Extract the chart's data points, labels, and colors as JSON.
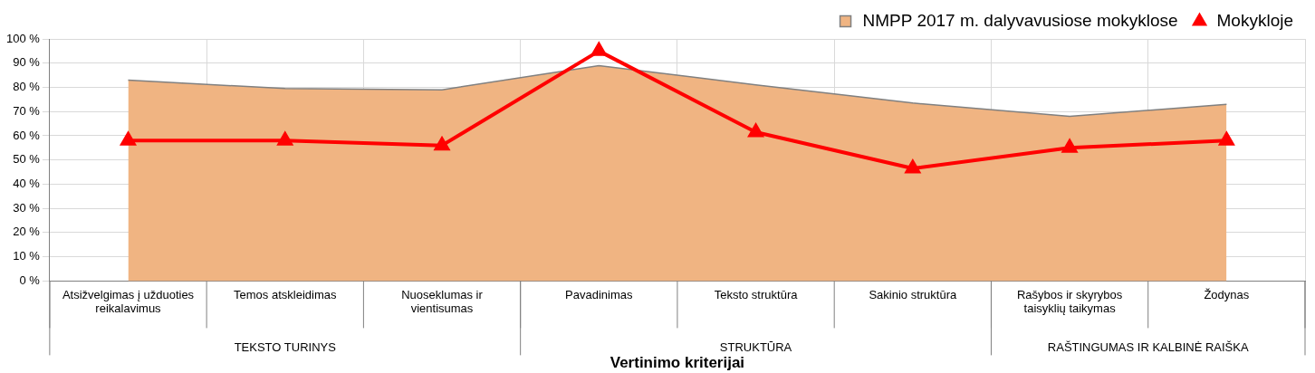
{
  "chart_data": {
    "type": "area",
    "categories": [
      "Atsižvelgimas į užduoties reikalavimus",
      "Temos atskleidimas",
      "Nuoseklumas ir vientisumas",
      "Pavadinimas",
      "Teksto struktūra",
      "Sakinio struktūra",
      "Rašybos ir skyrybos taisyklių taikymas",
      "Žodynas"
    ],
    "series": [
      {
        "name": "NMPP 2017 m. dalyvavusiose mokyklose",
        "color": "#f0b482",
        "marker": "none",
        "values": [
          83,
          79.5,
          79,
          89,
          81,
          73.5,
          68,
          73
        ]
      },
      {
        "name": "Mokykloje",
        "type": "line",
        "color": "#ff0000",
        "marker": "triangle",
        "values": [
          58,
          58,
          56,
          95,
          61.5,
          46.5,
          55,
          58
        ]
      }
    ],
    "xlabel": "Vertinimo kriterijai",
    "annotations": [
      "TEKSTO TURINYS",
      "STRUKTŪRA",
      "RAŠTINGUMAS IR KALBINĖ RAIŠKA"
    ],
    "ylim": [
      0,
      100
    ],
    "yticks": [
      {
        "value": 0,
        "label": "0 %"
      },
      {
        "value": 10,
        "label": "10 %"
      },
      {
        "value": 20,
        "label": "20 %"
      },
      {
        "value": 30,
        "label": "30 %"
      },
      {
        "value": 40,
        "label": "40 %"
      },
      {
        "value": 50,
        "label": "50 %"
      },
      {
        "value": 60,
        "label": "60 %"
      },
      {
        "value": 70,
        "label": "70 %"
      },
      {
        "value": 80,
        "label": "80 %"
      },
      {
        "value": 90,
        "label": "90 %"
      },
      {
        "value": 100,
        "label": "100 %"
      }
    ],
    "grid": true,
    "legend": "top right"
  }
}
